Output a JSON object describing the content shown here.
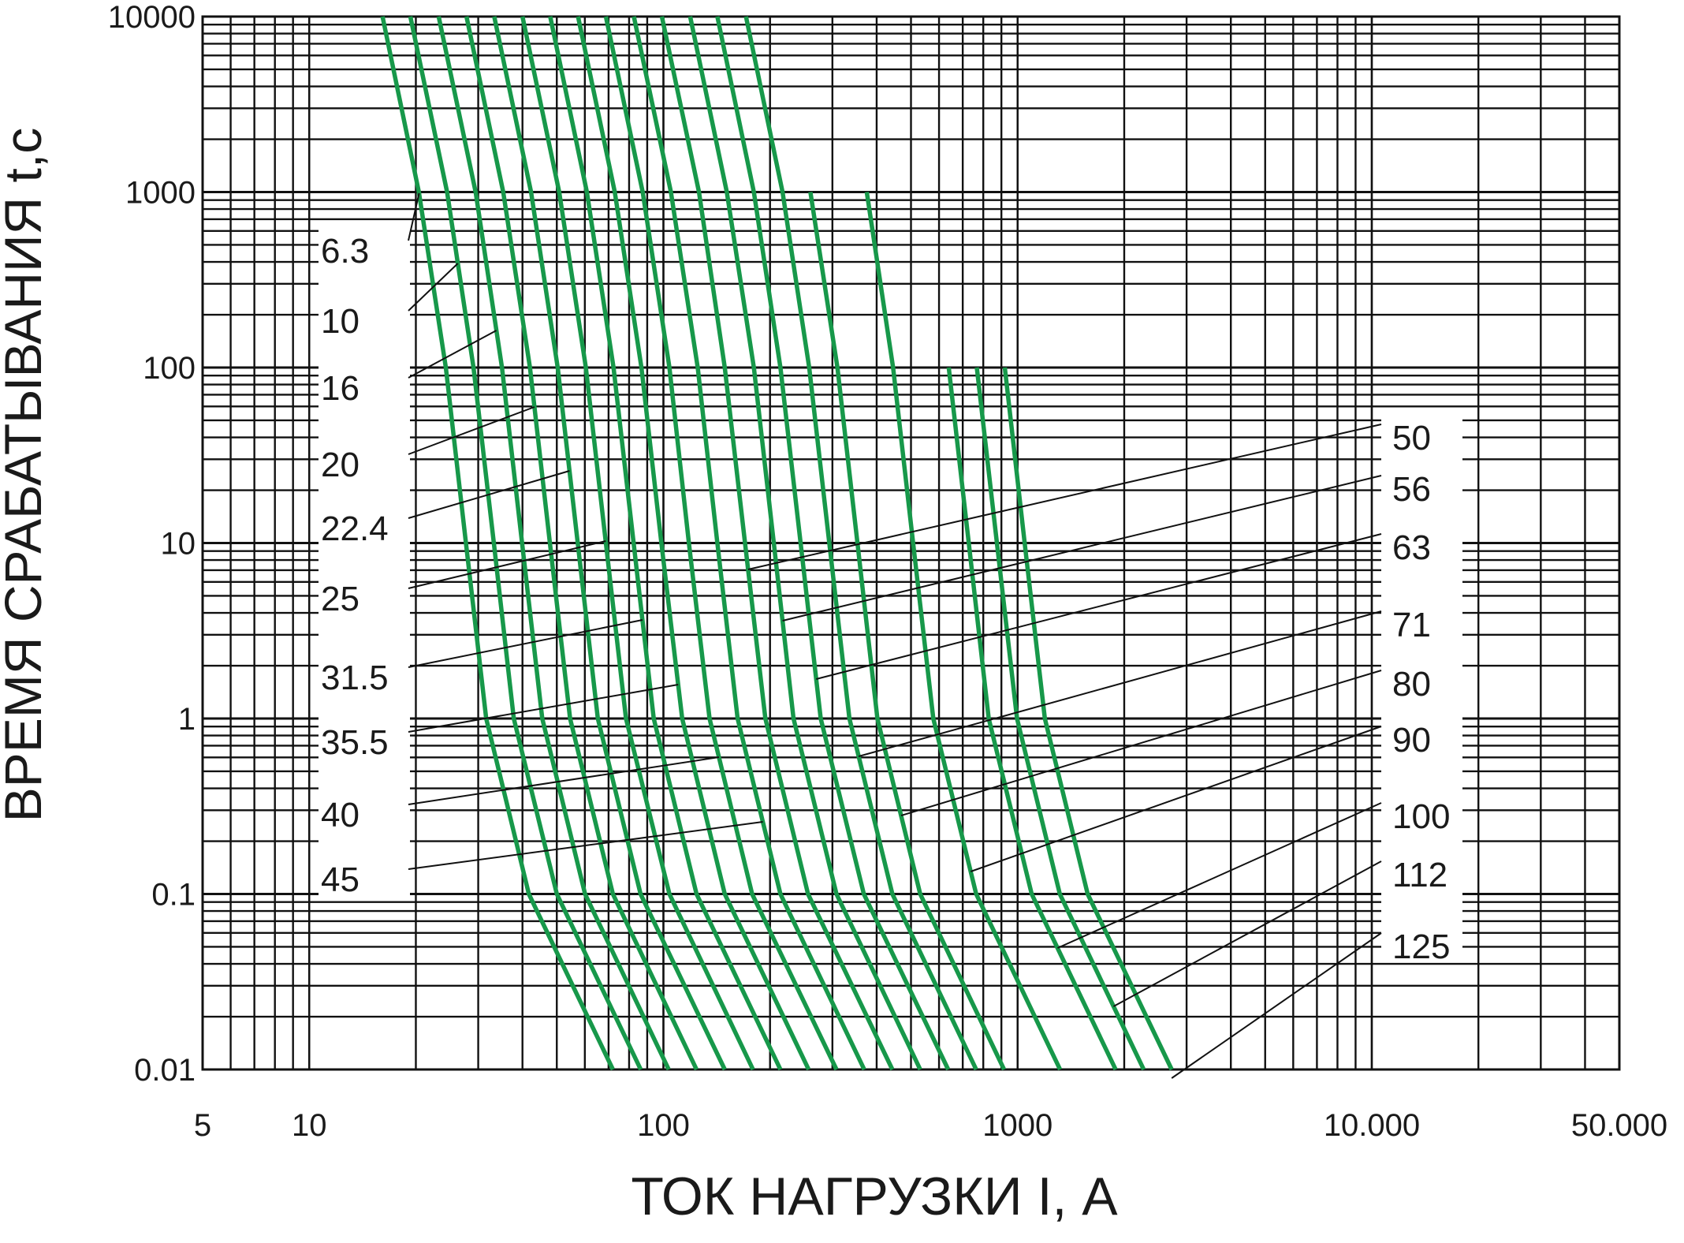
{
  "chart_data": {
    "type": "line",
    "log_x": true,
    "log_y": true,
    "grid": true,
    "x_label": "ТОК НАГРУЗКИ I, А",
    "y_label": "ВРЕМЯ СРАБАТЫВАНИЯ t,c",
    "xlim": [
      5,
      50000
    ],
    "ylim": [
      0.01,
      10000
    ],
    "xticks": [
      5,
      10,
      100,
      1000,
      {
        "value": 10000,
        "label": "10.000"
      },
      {
        "value": 50000,
        "label": "50.000"
      }
    ],
    "yticks": [
      0.01,
      0.1,
      1,
      10,
      100,
      1000,
      10000
    ],
    "series": [
      {
        "name": "6.3",
        "color": "#17984a",
        "x": [
          16.1,
          20.4,
          24.3,
          27.7,
          31.6,
          41.7,
          72
        ],
        "values": [
          10000,
          1000,
          100,
          10,
          1,
          0.1,
          0.01
        ]
      },
      {
        "name": "10",
        "color": "#17984a",
        "x": [
          19.3,
          24.5,
          29.1,
          33.2,
          37.8,
          50,
          86.3
        ],
        "values": [
          10000,
          1000,
          100,
          10,
          1,
          0.1,
          0.01
        ]
      },
      {
        "name": "16",
        "color": "#17984a",
        "x": [
          23.2,
          29.5,
          35,
          39.9,
          45.5,
          60.1,
          103.5
        ],
        "values": [
          10000,
          1000,
          100,
          10,
          1,
          0.1,
          0.01
        ]
      },
      {
        "name": "20",
        "color": "#17984a",
        "x": [
          27.8,
          35.3,
          42,
          47.8,
          54.5,
          72,
          124
        ],
        "values": [
          10000,
          1000,
          100,
          10,
          1,
          0.1,
          0.01
        ]
      },
      {
        "name": "22.4",
        "color": "#17984a",
        "x": [
          33.3,
          42.3,
          50.3,
          57.3,
          65.3,
          86.2,
          149
        ],
        "values": [
          10000,
          1000,
          100,
          10,
          1,
          0.1,
          0.01
        ]
      },
      {
        "name": "25",
        "color": "#17984a",
        "x": [
          40,
          50.8,
          60.4,
          68.8,
          78.4,
          104,
          179
        ],
        "values": [
          10000,
          1000,
          100,
          10,
          1,
          0.1,
          0.01
        ]
      },
      {
        "name": "31.5",
        "color": "#17984a",
        "x": [
          47.9,
          60.8,
          72.3,
          82.4,
          93.9,
          124,
          214
        ],
        "values": [
          10000,
          1000,
          100,
          10,
          1,
          0.1,
          0.01
        ]
      },
      {
        "name": "35.5",
        "color": "#17984a",
        "x": [
          57.4,
          72.9,
          86.7,
          98.7,
          113,
          149,
          257
        ],
        "values": [
          10000,
          1000,
          100,
          10,
          1,
          0.1,
          0.01
        ]
      },
      {
        "name": "40",
        "color": "#17984a",
        "x": [
          68.8,
          87.4,
          104,
          118,
          135,
          178,
          308
        ],
        "values": [
          10000,
          1000,
          100,
          10,
          1,
          0.1,
          0.01
        ]
      },
      {
        "name": "45",
        "color": "#17984a",
        "x": [
          82.5,
          105,
          125,
          142,
          162,
          214,
          369
        ],
        "values": [
          10000,
          1000,
          100,
          10,
          1,
          0.1,
          0.01
        ]
      },
      {
        "name": "50",
        "color": "#17984a",
        "x": [
          99,
          126,
          149,
          170,
          194,
          256,
          443
        ],
        "values": [
          10000,
          1000,
          100,
          10,
          1,
          0.1,
          0.01
        ]
      },
      {
        "name": "56",
        "color": "#17984a",
        "x": [
          119,
          151,
          180,
          205,
          233,
          308,
          531
        ],
        "values": [
          10000,
          1000,
          100,
          10,
          1,
          0.1,
          0.01
        ]
      },
      {
        "name": "63",
        "color": "#17984a",
        "x": [
          142,
          180,
          214,
          244,
          278,
          368,
          637
        ],
        "values": [
          10000,
          1000,
          100,
          10,
          1,
          0.1,
          0.01
        ]
      },
      {
        "name": "71",
        "color": "#17984a",
        "x": [
          171,
          217,
          258,
          294,
          335,
          443,
          764
        ],
        "values": [
          10000,
          1000,
          100,
          10,
          1,
          0.1,
          0.01
        ]
      },
      {
        "name": "80",
        "color": "#17984a",
        "x": [
          260,
          310,
          353,
          402,
          531,
          916
        ],
        "values": [
          1000,
          100,
          10,
          1,
          0.1,
          0.01
        ]
      },
      {
        "name": "90",
        "color": "#17984a",
        "x": [
          375,
          445,
          507,
          578,
          764,
          1318
        ],
        "values": [
          1000,
          100,
          10,
          1,
          0.1,
          0.01
        ]
      },
      {
        "name": "100",
        "color": "#17984a",
        "x": [
          639,
          728,
          829,
          1096,
          1892
        ],
        "values": [
          100,
          10,
          1,
          0.1,
          0.01
        ]
      },
      {
        "name": "112",
        "color": "#17984a",
        "x": [
          767,
          874,
          996,
          1316,
          2270
        ],
        "values": [
          100,
          10,
          1,
          0.1,
          0.01
        ]
      },
      {
        "name": "125",
        "color": "#17984a",
        "x": [
          920,
          1047,
          1194,
          1577,
          2723
        ],
        "values": [
          100,
          10,
          1,
          0.1,
          0.01
        ]
      }
    ]
  }
}
